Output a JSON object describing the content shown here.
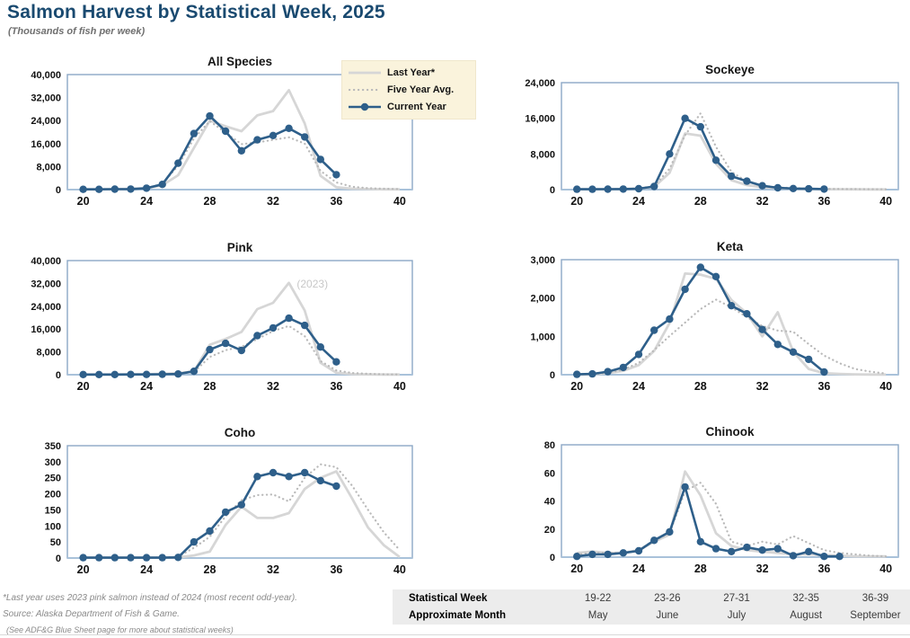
{
  "header": {
    "title": "Salmon Harvest by Statistical Week, 2025",
    "subtitle": "(Thousands of fish per week)"
  },
  "colors": {
    "current_year": "#2e5f8a",
    "last_year": "#d6d6d6",
    "five_year_avg": "#b9b9b9",
    "title_navy": "#1a4a70",
    "plot_border": "#8ca7c6",
    "axis_line": "#a9c2da",
    "legend_bg": "#faf3dc",
    "table_bg": "#ececec",
    "annotation_gray": "#c8c8c8",
    "footnote_gray": "#8a8a8a"
  },
  "legend": {
    "items": [
      {
        "label": "Last Year*",
        "style": "solid-gray-line"
      },
      {
        "label": "Five Year Avg.",
        "style": "dotted-gray-line"
      },
      {
        "label": "Current Year",
        "style": "blue-line-with-marker"
      }
    ]
  },
  "chart_data": [
    {
      "type": "line",
      "title": "All Species",
      "xlim": [
        19,
        40.8
      ],
      "ylim": [
        0,
        40000
      ],
      "xticks": [
        20,
        24,
        28,
        32,
        36,
        40
      ],
      "yticks": [
        [
          0,
          "0"
        ],
        [
          8000,
          "8,000"
        ],
        [
          16000,
          "16,000"
        ],
        [
          24000,
          "24,000"
        ],
        [
          32000,
          "32,000"
        ],
        [
          40000,
          "40,000"
        ]
      ],
      "annotation": null,
      "series": [
        {
          "name": "Last Year*",
          "key": "last_year",
          "x_start": 20,
          "values": [
            100,
            100,
            150,
            250,
            500,
            1500,
            5000,
            14500,
            24000,
            22000,
            20300,
            25800,
            27300,
            34600,
            23000,
            4800,
            800,
            300,
            200,
            100,
            100
          ]
        },
        {
          "name": "Five Year Avg.",
          "key": "five_year_avg",
          "x_start": 20,
          "values": [
            100,
            100,
            150,
            250,
            600,
            2000,
            8300,
            17800,
            23800,
            19800,
            15800,
            16400,
            17300,
            18200,
            16000,
            6500,
            2500,
            1000,
            500,
            300,
            200
          ]
        },
        {
          "name": "Current Year",
          "key": "current_year",
          "x_start": 20,
          "values": [
            100,
            100,
            150,
            200,
            500,
            1800,
            9200,
            19500,
            25600,
            20300,
            13500,
            17300,
            18800,
            21300,
            18300,
            10500,
            5200
          ]
        }
      ]
    },
    {
      "type": "line",
      "title": "Sockeye",
      "xlim": [
        19,
        40.8
      ],
      "ylim": [
        0,
        24000
      ],
      "xticks": [
        20,
        24,
        28,
        32,
        36,
        40
      ],
      "yticks": [
        [
          0,
          "0"
        ],
        [
          8000,
          "8,000"
        ],
        [
          16000,
          "16,000"
        ],
        [
          24000,
          "24,000"
        ]
      ],
      "annotation": null,
      "series": [
        {
          "name": "Last Year*",
          "key": "last_year",
          "x_start": 20,
          "values": [
            80,
            80,
            100,
            150,
            250,
            600,
            3800,
            12600,
            12100,
            5800,
            2100,
            1000,
            550,
            300,
            200,
            150,
            100,
            80,
            60,
            50,
            40
          ]
        },
        {
          "name": "Five Year Avg.",
          "key": "five_year_avg",
          "x_start": 20,
          "values": [
            80,
            80,
            100,
            150,
            300,
            800,
            4700,
            12200,
            17100,
            9600,
            4000,
            1800,
            900,
            500,
            350,
            250,
            180,
            150,
            120,
            100,
            80
          ]
        },
        {
          "name": "Current Year",
          "key": "current_year",
          "x_start": 20,
          "values": [
            80,
            80,
            100,
            120,
            200,
            700,
            8000,
            16000,
            14100,
            6600,
            3000,
            1900,
            870,
            400,
            250,
            180,
            120
          ]
        }
      ]
    },
    {
      "type": "line",
      "title": "Pink",
      "xlim": [
        19,
        40.8
      ],
      "ylim": [
        0,
        40000
      ],
      "xticks": [
        20,
        24,
        28,
        32,
        36,
        40
      ],
      "yticks": [
        [
          0,
          "0"
        ],
        [
          8000,
          "8,000"
        ],
        [
          16000,
          "16,000"
        ],
        [
          24000,
          "24,000"
        ],
        [
          32000,
          "32,000"
        ],
        [
          40000,
          "40,000"
        ]
      ],
      "annotation": {
        "text": "(2023)",
        "x": 33.5,
        "y": 30500
      },
      "series": [
        {
          "name": "Last Year*",
          "key": "last_year",
          "x_start": 20,
          "values": [
            50,
            50,
            50,
            80,
            150,
            300,
            500,
            1200,
            10500,
            12500,
            15000,
            23000,
            25200,
            32200,
            22500,
            4200,
            700,
            200,
            100,
            50,
            50
          ]
        },
        {
          "name": "Five Year Avg.",
          "key": "five_year_avg",
          "x_start": 20,
          "values": [
            50,
            50,
            50,
            80,
            120,
            200,
            350,
            900,
            6200,
            8600,
            9800,
            12500,
            15300,
            17100,
            13500,
            4800,
            1500,
            600,
            300,
            150,
            100
          ]
        },
        {
          "name": "Current Year",
          "key": "current_year",
          "x_start": 20,
          "values": [
            50,
            50,
            50,
            80,
            100,
            150,
            250,
            1200,
            8800,
            11000,
            8500,
            13700,
            16400,
            19800,
            17300,
            9700,
            4500
          ]
        }
      ]
    },
    {
      "type": "line",
      "title": "Keta",
      "xlim": [
        19,
        40.8
      ],
      "ylim": [
        0,
        3000
      ],
      "xticks": [
        20,
        24,
        28,
        32,
        36,
        40
      ],
      "yticks": [
        [
          0,
          "0"
        ],
        [
          1000,
          "1,000"
        ],
        [
          2000,
          "2,000"
        ],
        [
          3000,
          "3,000"
        ]
      ],
      "annotation": null,
      "series": [
        {
          "name": "Last Year*",
          "key": "last_year",
          "x_start": 20,
          "values": [
            5,
            10,
            40,
            100,
            250,
            620,
            1350,
            2640,
            2610,
            2500,
            1950,
            1600,
            1000,
            1630,
            600,
            150,
            40,
            20,
            10,
            5,
            5
          ]
        },
        {
          "name": "Five Year Avg.",
          "key": "five_year_avg",
          "x_start": 20,
          "values": [
            10,
            15,
            50,
            130,
            310,
            640,
            1010,
            1360,
            1710,
            1960,
            1760,
            1500,
            1270,
            1150,
            1120,
            800,
            500,
            300,
            150,
            80,
            30
          ]
        },
        {
          "name": "Current Year",
          "key": "current_year",
          "x_start": 20,
          "values": [
            10,
            20,
            80,
            190,
            530,
            1160,
            1450,
            2230,
            2800,
            2560,
            1800,
            1590,
            1180,
            790,
            590,
            400,
            70
          ]
        }
      ]
    },
    {
      "type": "line",
      "title": "Coho",
      "xlim": [
        19,
        40.8
      ],
      "ylim": [
        0,
        350
      ],
      "xticks": [
        20,
        24,
        28,
        32,
        36,
        40
      ],
      "yticks": [
        [
          0,
          "0"
        ],
        [
          50,
          "50"
        ],
        [
          100,
          "100"
        ],
        [
          150,
          "150"
        ],
        [
          200,
          "200"
        ],
        [
          250,
          "250"
        ],
        [
          300,
          "300"
        ],
        [
          350,
          "350"
        ]
      ],
      "annotation": null,
      "series": [
        {
          "name": "Last Year*",
          "key": "last_year",
          "x_start": 20,
          "values": [
            1,
            1,
            1,
            1,
            1,
            1,
            2,
            8,
            20,
            103,
            160,
            125,
            125,
            140,
            215,
            250,
            270,
            185,
            95,
            40,
            3
          ]
        },
        {
          "name": "Five Year Avg.",
          "key": "five_year_avg",
          "x_start": 20,
          "values": [
            1,
            1,
            1,
            1,
            1,
            2,
            4,
            32,
            66,
            130,
            180,
            196,
            198,
            176,
            250,
            292,
            283,
            225,
            150,
            80,
            25
          ]
        },
        {
          "name": "Current Year",
          "key": "current_year",
          "x_start": 20,
          "values": [
            1,
            1,
            1,
            1,
            1,
            1,
            2,
            50,
            84,
            143,
            166,
            254,
            266,
            254,
            266,
            241,
            224
          ]
        }
      ]
    },
    {
      "type": "line",
      "title": "Chinook",
      "xlim": [
        19,
        40.8
      ],
      "ylim": [
        0,
        80
      ],
      "xticks": [
        20,
        24,
        28,
        32,
        36,
        40
      ],
      "yticks": [
        [
          0,
          "0"
        ],
        [
          20,
          "20"
        ],
        [
          40,
          "40"
        ],
        [
          60,
          "60"
        ],
        [
          80,
          "80"
        ]
      ],
      "annotation": null,
      "series": [
        {
          "name": "Last Year*",
          "key": "last_year",
          "x_start": 20,
          "values": [
            3,
            4,
            3,
            3,
            5,
            11,
            16,
            61,
            44,
            17,
            8,
            5,
            4,
            3,
            2,
            2,
            1.5,
            1,
            0.5,
            0.5,
            0.5
          ]
        },
        {
          "name": "Five Year Avg.",
          "key": "five_year_avg",
          "x_start": 20,
          "values": [
            2,
            3,
            3,
            3,
            5,
            12,
            17,
            47,
            53,
            38,
            11,
            8,
            11,
            9,
            15,
            10,
            5,
            3,
            2,
            1,
            0.5
          ]
        },
        {
          "name": "Current Year",
          "key": "current_year",
          "x_start": 20,
          "values": [
            0.5,
            2,
            2,
            3,
            4.5,
            12,
            18,
            50,
            11,
            6,
            4,
            7,
            5,
            6,
            1,
            4,
            0.5,
            0.5
          ]
        }
      ]
    }
  ],
  "week_table": {
    "rows": [
      {
        "label": "Statistical Week",
        "values": [
          "19-22",
          "23-26",
          "27-31",
          "32-35",
          "36-39"
        ]
      },
      {
        "label": "Approximate Month",
        "values": [
          "May",
          "June",
          "July",
          "August",
          "September"
        ]
      }
    ]
  },
  "footnotes": [
    "*Last year uses 2023 pink salmon instead of 2024 (most recent odd-year).",
    "Source: Alaska Department of Fish & Game.",
    "(See ADF&G Blue Sheet page for more about statistical weeks)"
  ]
}
